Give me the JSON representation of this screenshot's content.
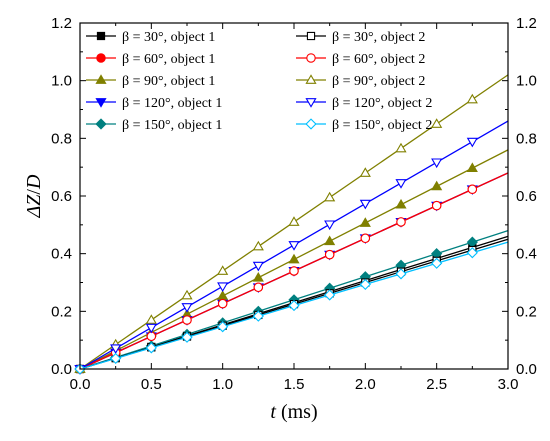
{
  "chart_data": {
    "type": "line",
    "xlabel": "t (ms)",
    "ylabel": "ΔZ/D",
    "xlim": [
      0.0,
      3.0
    ],
    "ylim": [
      0.0,
      1.2
    ],
    "x_ticks": [
      0.0,
      0.5,
      1.0,
      1.5,
      2.0,
      2.5,
      3.0
    ],
    "y_ticks": [
      0.0,
      0.2,
      0.4,
      0.6,
      0.8,
      1.0,
      1.2
    ],
    "x_tick_labels": [
      "0.0",
      "0.5",
      "1.0",
      "1.5",
      "2.0",
      "2.5",
      "3.0"
    ],
    "y_tick_labels": [
      "0.0",
      "0.2",
      "0.4",
      "0.6",
      "0.8",
      "1.0",
      "1.2"
    ],
    "right_axis_mirrored": true,
    "grid": false,
    "legend_placement": "top-left, two columns",
    "x_marker_positions": [
      0.0,
      0.25,
      0.5,
      0.75,
      1.0,
      1.25,
      1.5,
      1.75,
      2.0,
      2.25,
      2.5,
      2.75
    ],
    "series": [
      {
        "name": "β = 30°,   object 1",
        "color": "#000000",
        "marker": "square",
        "filled": true,
        "x": [
          0,
          3.0
        ],
        "y": [
          0,
          0.46
        ]
      },
      {
        "name": "β = 60°,   object 1",
        "color": "#ff0000",
        "marker": "circle",
        "filled": true,
        "x": [
          0,
          3.0
        ],
        "y": [
          0,
          0.68
        ]
      },
      {
        "name": "β = 90°,   object 1",
        "color": "#808000",
        "marker": "triangle-up",
        "filled": true,
        "x": [
          0,
          3.0
        ],
        "y": [
          0,
          0.76
        ]
      },
      {
        "name": "β = 120°, object 1",
        "color": "#0000ff",
        "marker": "triangle-down",
        "filled": true,
        "x": [
          0,
          3.0
        ],
        "y": [
          0,
          0.68
        ]
      },
      {
        "name": "β = 150°, object 1",
        "color": "#008080",
        "marker": "diamond",
        "filled": true,
        "x": [
          0,
          3.0
        ],
        "y": [
          0,
          0.48
        ]
      },
      {
        "name": "β = 30°,   object 2",
        "color": "#000000",
        "marker": "square",
        "filled": false,
        "x": [
          0,
          3.0
        ],
        "y": [
          0,
          0.45
        ]
      },
      {
        "name": "β = 60°,   object 2",
        "color": "#ff0000",
        "marker": "circle",
        "filled": false,
        "x": [
          0,
          3.0
        ],
        "y": [
          0,
          0.68
        ]
      },
      {
        "name": "β = 90°,   object 2",
        "color": "#808000",
        "marker": "triangle-up",
        "filled": false,
        "x": [
          0,
          3.0
        ],
        "y": [
          0,
          1.02
        ]
      },
      {
        "name": "β = 120°, object 2",
        "color": "#0000ff",
        "marker": "triangle-down",
        "filled": false,
        "x": [
          0,
          3.0
        ],
        "y": [
          0,
          0.86
        ]
      },
      {
        "name": "β = 150°, object 2",
        "color": "#00bfff",
        "marker": "diamond",
        "filled": false,
        "x": [
          0,
          3.0
        ],
        "y": [
          0,
          0.44
        ]
      }
    ]
  }
}
